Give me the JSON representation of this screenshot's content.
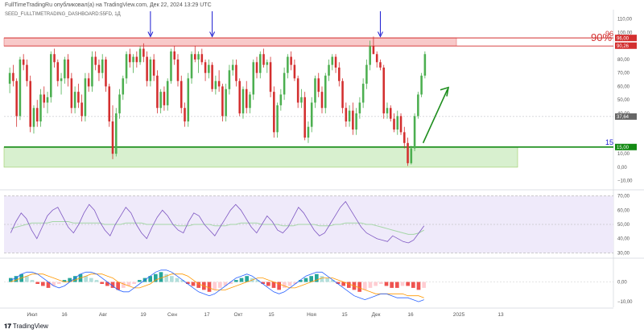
{
  "header": {
    "publisher_line": "FullTimeTradingRu опубликовал(а) на TradingView.com, Дек 22, 2024 13:29 UTC",
    "symbol_line": "SEED_FULLTIMETRADING_DASHBOARD:55FD, 1Д"
  },
  "footer": {
    "brand_mark": "𝟏𝟕",
    "brand_name": "TradingView"
  },
  "colors": {
    "up": "#4caf50",
    "down": "#d32f2f",
    "resistance_zone": "#f8c9c9",
    "support_zone": "#d8f0cf",
    "support_line": "#138a13",
    "arrow_blue": "#1a1ad0",
    "rsi_band": "#efeafa",
    "rsi_line": "#7e57c2",
    "rsi_ma": "#a5d6a7",
    "macd_line": "#2962ff",
    "signal_line": "#ff9800"
  },
  "chart_data": [
    {
      "type": "candlestick",
      "panel": "price",
      "ylim": [
        -12,
        117
      ],
      "y_ticks": [
        "110,00",
        "100,00",
        "90,00",
        "80,00",
        "70,00",
        "60,00",
        "50,00",
        "40,00",
        "10,00",
        "0,00",
        "−10,00"
      ],
      "x_tick_labels": [
        "Июл",
        "16",
        "Авг",
        "19",
        "Сен",
        "17",
        "Окт",
        "15",
        "Ноя",
        "15",
        "Дек",
        "16",
        "2025",
        "13"
      ],
      "price_tags": [
        {
          "value": 96,
          "label": "96,00",
          "color": "#d32f2f"
        },
        {
          "value": 90.26,
          "label": "90,26",
          "color": "#d32f2f"
        },
        {
          "value": 37.64,
          "label": "37,64",
          "color": "#666666"
        },
        {
          "value": 15,
          "label": "15,00",
          "color": "#138a13"
        }
      ],
      "annotations": [
        {
          "text": "96",
          "value": 96,
          "color": "#d32f2f"
        },
        {
          "text": "90%",
          "value": 90,
          "color": "#d32f2f"
        },
        {
          "text": "15",
          "value": 15,
          "color": "#1a1ad0"
        }
      ],
      "resistance_zone": [
        90,
        96
      ],
      "support_zone": [
        0,
        15
      ],
      "candles": [
        [
          62,
          74,
          55,
          70
        ],
        [
          70,
          76,
          60,
          64
        ],
        [
          64,
          66,
          30,
          38
        ],
        [
          38,
          82,
          35,
          80
        ],
        [
          80,
          84,
          72,
          76
        ],
        [
          76,
          80,
          60,
          64
        ],
        [
          64,
          68,
          26,
          30
        ],
        [
          30,
          46,
          25,
          44
        ],
        [
          44,
          50,
          30,
          34
        ],
        [
          34,
          58,
          30,
          54
        ],
        [
          54,
          60,
          44,
          48
        ],
        [
          48,
          56,
          40,
          52
        ],
        [
          52,
          86,
          48,
          84
        ],
        [
          84,
          88,
          74,
          78
        ],
        [
          78,
          80,
          60,
          64
        ],
        [
          64,
          70,
          54,
          66
        ],
        [
          66,
          82,
          62,
          80
        ],
        [
          80,
          84,
          60,
          66
        ],
        [
          66,
          70,
          40,
          44
        ],
        [
          44,
          60,
          40,
          56
        ],
        [
          56,
          62,
          44,
          48
        ],
        [
          48,
          54,
          34,
          38
        ],
        [
          38,
          70,
          34,
          66
        ],
        [
          66,
          70,
          56,
          60
        ],
        [
          60,
          86,
          56,
          82
        ],
        [
          82,
          86,
          72,
          76
        ],
        [
          76,
          80,
          64,
          70
        ],
        [
          70,
          84,
          66,
          80
        ],
        [
          80,
          82,
          56,
          60
        ],
        [
          60,
          62,
          30,
          34
        ],
        [
          34,
          46,
          6,
          10
        ],
        [
          10,
          44,
          8,
          40
        ],
        [
          40,
          58,
          36,
          54
        ],
        [
          54,
          68,
          50,
          66
        ],
        [
          66,
          86,
          62,
          84
        ],
        [
          84,
          88,
          74,
          78
        ],
        [
          78,
          84,
          70,
          82
        ],
        [
          82,
          86,
          74,
          78
        ],
        [
          78,
          90,
          76,
          88
        ],
        [
          88,
          92,
          78,
          82
        ],
        [
          82,
          86,
          60,
          64
        ],
        [
          64,
          82,
          60,
          80
        ],
        [
          80,
          84,
          64,
          68
        ],
        [
          68,
          72,
          40,
          44
        ],
        [
          44,
          58,
          40,
          56
        ],
        [
          56,
          60,
          42,
          46
        ],
        [
          46,
          66,
          42,
          64
        ],
        [
          64,
          88,
          62,
          86
        ],
        [
          86,
          90,
          76,
          80
        ],
        [
          80,
          84,
          60,
          64
        ],
        [
          64,
          68,
          40,
          44
        ],
        [
          44,
          48,
          30,
          34
        ],
        [
          34,
          70,
          30,
          66
        ],
        [
          66,
          86,
          62,
          84
        ],
        [
          84,
          90,
          78,
          80
        ],
        [
          80,
          86,
          70,
          84
        ],
        [
          84,
          88,
          76,
          78
        ],
        [
          78,
          80,
          64,
          70
        ],
        [
          70,
          80,
          66,
          76
        ],
        [
          76,
          78,
          56,
          58
        ],
        [
          58,
          68,
          54,
          64
        ],
        [
          64,
          72,
          56,
          60
        ],
        [
          60,
          62,
          34,
          38
        ],
        [
          38,
          62,
          34,
          58
        ],
        [
          58,
          76,
          54,
          72
        ],
        [
          72,
          80,
          68,
          76
        ],
        [
          76,
          80,
          60,
          64
        ],
        [
          64,
          66,
          38,
          40
        ],
        [
          40,
          60,
          36,
          58
        ],
        [
          58,
          64,
          40,
          44
        ],
        [
          44,
          56,
          40,
          54
        ],
        [
          54,
          80,
          50,
          78
        ],
        [
          78,
          82,
          66,
          70
        ],
        [
          70,
          86,
          66,
          84
        ],
        [
          84,
          88,
          74,
          76
        ],
        [
          76,
          80,
          70,
          78
        ],
        [
          78,
          82,
          52,
          56
        ],
        [
          56,
          60,
          22,
          26
        ],
        [
          26,
          48,
          22,
          46
        ],
        [
          46,
          58,
          42,
          54
        ],
        [
          54,
          74,
          50,
          70
        ],
        [
          70,
          84,
          66,
          82
        ],
        [
          82,
          86,
          72,
          76
        ],
        [
          76,
          80,
          64,
          66
        ],
        [
          66,
          68,
          44,
          48
        ],
        [
          48,
          58,
          44,
          52
        ],
        [
          52,
          56,
          20,
          22
        ],
        [
          22,
          34,
          18,
          30
        ],
        [
          30,
          52,
          26,
          48
        ],
        [
          48,
          68,
          44,
          66
        ],
        [
          66,
          70,
          52,
          56
        ],
        [
          56,
          60,
          40,
          44
        ],
        [
          44,
          70,
          40,
          68
        ],
        [
          68,
          80,
          64,
          76
        ],
        [
          76,
          84,
          72,
          82
        ],
        [
          82,
          84,
          70,
          74
        ],
        [
          74,
          78,
          60,
          64
        ],
        [
          64,
          66,
          40,
          44
        ],
        [
          44,
          48,
          30,
          34
        ],
        [
          34,
          46,
          30,
          42
        ],
        [
          42,
          48,
          24,
          28
        ],
        [
          28,
          44,
          24,
          40
        ],
        [
          40,
          52,
          36,
          48
        ],
        [
          48,
          66,
          44,
          62
        ],
        [
          62,
          80,
          58,
          76
        ],
        [
          76,
          94,
          72,
          90
        ],
        [
          90,
          97,
          84,
          84
        ],
        [
          84,
          86,
          74,
          78
        ],
        [
          78,
          80,
          72,
          74
        ],
        [
          74,
          76,
          36,
          40
        ],
        [
          40,
          48,
          36,
          44
        ],
        [
          44,
          46,
          34,
          36
        ],
        [
          36,
          40,
          26,
          28
        ],
        [
          28,
          42,
          24,
          38
        ],
        [
          38,
          40,
          24,
          26
        ],
        [
          26,
          30,
          14,
          18
        ],
        [
          18,
          22,
          1,
          3
        ],
        [
          3,
          16,
          2,
          14
        ],
        [
          14,
          40,
          12,
          38
        ],
        [
          38,
          56,
          36,
          54
        ],
        [
          54,
          70,
          52,
          68
        ],
        [
          68,
          86,
          66,
          84
        ]
      ]
    },
    {
      "type": "line",
      "panel": "rsi",
      "ylim": [
        28,
        72
      ],
      "y_ticks": [
        "70,00",
        "60,00",
        "50,00",
        "40,00",
        "30,00"
      ],
      "series": [
        {
          "values": [
            44,
            52,
            58,
            54,
            46,
            40,
            48,
            56,
            60,
            62,
            55,
            48,
            44,
            50,
            58,
            64,
            60,
            52,
            46,
            42,
            50,
            56,
            62,
            58,
            50,
            44,
            40,
            48,
            55,
            60,
            56,
            50,
            46,
            44,
            52,
            58,
            56,
            50,
            46,
            42,
            48,
            54,
            60,
            64,
            60,
            54,
            48,
            44,
            50,
            56,
            52,
            46,
            44,
            48,
            55,
            62,
            58,
            52,
            46,
            42,
            44,
            50,
            56,
            62,
            66,
            60,
            54,
            48,
            44,
            42,
            40,
            39,
            38,
            42,
            40,
            38,
            37,
            39,
            44,
            49
          ]
        },
        {
          "values": [
            47,
            48,
            49,
            50,
            51,
            51,
            51,
            51,
            52,
            52,
            52,
            52,
            51,
            51,
            51,
            51,
            51,
            51,
            50,
            50,
            50,
            50,
            51,
            51,
            51,
            51,
            50,
            50,
            50,
            50,
            50,
            50,
            49,
            49,
            49,
            50,
            50,
            50,
            50,
            49,
            49,
            49,
            50,
            50,
            51,
            51,
            51,
            51,
            50,
            50,
            50,
            50,
            49,
            49,
            49,
            50,
            50,
            50,
            50,
            49,
            49,
            49,
            50,
            50,
            51,
            51,
            51,
            51,
            50,
            50,
            49,
            48,
            47,
            46,
            45,
            44,
            43,
            43,
            44,
            46
          ]
        }
      ]
    },
    {
      "type": "bar",
      "panel": "macd",
      "ylim": [
        -12,
        10
      ],
      "y_ticks": [
        "0,00",
        "−10,00"
      ],
      "histogram": [
        2,
        3,
        4,
        3,
        1,
        -1,
        -2,
        -3,
        -2,
        -1,
        1,
        2,
        3,
        4,
        3,
        2,
        1,
        -1,
        -2,
        -3,
        -4,
        -3,
        -2,
        -1,
        1,
        2,
        3,
        4,
        5,
        4,
        3,
        2,
        1,
        -1,
        -2,
        -3,
        -4,
        -5,
        -4,
        -3,
        -2,
        -1,
        1,
        2,
        3,
        2,
        1,
        -1,
        -2,
        -3,
        -4,
        -3,
        -2,
        -1,
        1,
        2,
        3,
        4,
        3,
        2,
        1,
        -1,
        -2,
        -3,
        -4,
        -5,
        -4,
        -3,
        -2,
        -1,
        -2,
        -3,
        -3,
        -2,
        -2,
        -3,
        -4,
        -3
      ],
      "series": [
        {
          "values": [
            1,
            2,
            4,
            5,
            5,
            4,
            2,
            0,
            -2,
            -3,
            -2,
            0,
            2,
            4,
            5,
            5,
            4,
            2,
            0,
            -2,
            -4,
            -5,
            -5,
            -3,
            -1,
            1,
            3,
            5,
            6,
            6,
            5,
            3,
            1,
            -1,
            -3,
            -5,
            -6,
            -7,
            -6,
            -4,
            -2,
            0,
            2,
            3,
            4,
            3,
            1,
            -1,
            -3,
            -5,
            -6,
            -5,
            -3,
            -1,
            1,
            3,
            4,
            5,
            5,
            3,
            1,
            -1,
            -3,
            -5,
            -7,
            -8,
            -9,
            -8,
            -7,
            -6,
            -6,
            -7,
            -8,
            -8,
            -8,
            -9,
            -10,
            -9
          ]
        },
        {
          "values": [
            0,
            1,
            2,
            3,
            4,
            4,
            4,
            3,
            2,
            1,
            0,
            0,
            1,
            2,
            3,
            4,
            4,
            4,
            3,
            2,
            0,
            -1,
            -2,
            -3,
            -3,
            -2,
            -1,
            1,
            2,
            3,
            4,
            4,
            4,
            3,
            1,
            -1,
            -2,
            -3,
            -4,
            -4,
            -4,
            -3,
            -2,
            -1,
            0,
            1,
            2,
            2,
            1,
            0,
            -1,
            -2,
            -3,
            -3,
            -2,
            -1,
            0,
            1,
            2,
            2,
            2,
            1,
            0,
            -1,
            -2,
            -3,
            -4,
            -5,
            -6,
            -6,
            -6,
            -6,
            -6,
            -6,
            -7,
            -7,
            -7,
            -8
          ]
        }
      ]
    }
  ]
}
